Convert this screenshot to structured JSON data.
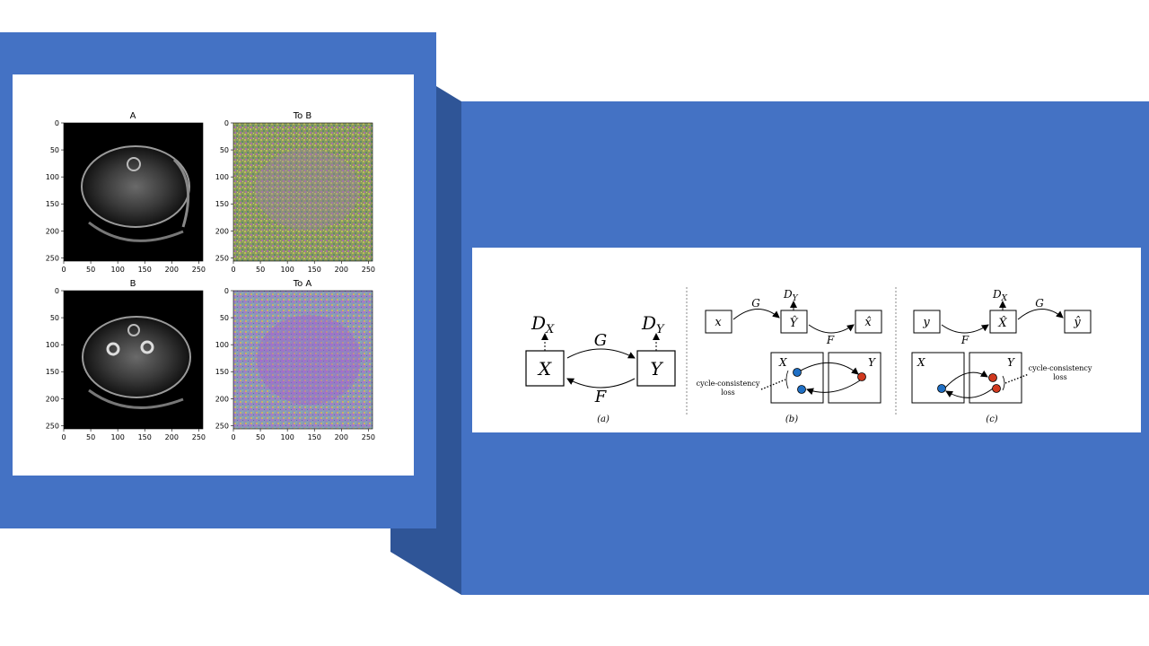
{
  "slide": {
    "colors": {
      "accent": "#4472c4",
      "accent_dark": "#2f5597",
      "background": "#ffffff"
    }
  },
  "left_figure": {
    "panels": [
      {
        "title": "A"
      },
      {
        "title": "To B"
      },
      {
        "title": "B"
      },
      {
        "title": "To A"
      }
    ],
    "axis_ticks": [
      "0",
      "50",
      "100",
      "150",
      "200",
      "250"
    ]
  },
  "right_figure": {
    "a": {
      "dx": "D",
      "dx_sub": "X",
      "dy": "D",
      "dy_sub": "Y",
      "x": "X",
      "y": "Y",
      "g": "G",
      "f": "F",
      "caption": "(a)"
    },
    "b": {
      "x": "x",
      "yhat": "Ŷ",
      "xhat": "x̂",
      "g": "G",
      "f": "F",
      "dy": "D",
      "dy_sub": "Y",
      "box_x": "X",
      "box_y": "Y",
      "loss_line1": "cycle-consistency",
      "loss_line2": "loss",
      "caption": "(b)"
    },
    "c": {
      "y": "y",
      "xhat": "X̂",
      "yhat": "ŷ",
      "g": "G",
      "f": "F",
      "dx": "D",
      "dx_sub": "X",
      "box_x": "X",
      "box_y": "Y",
      "loss_line1": "cycle-consistency",
      "loss_line2": "loss",
      "caption": "(c)"
    }
  }
}
